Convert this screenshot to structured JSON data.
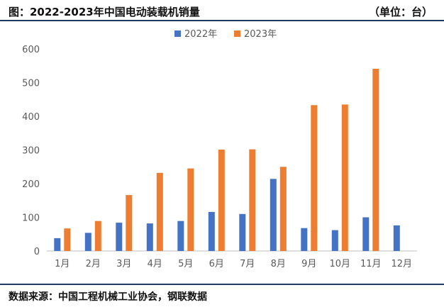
{
  "header": {
    "title": "图：2022-2023年中国电动装载机销量",
    "unit": "（单位：台）"
  },
  "footer": {
    "source": "数据来源：中国工程机械工业协会，钢联数据"
  },
  "colors": {
    "series_2022": "#4472c4",
    "series_2023": "#ed7d31",
    "axis": "#bfbfbf",
    "tick_text": "#595959",
    "rule": "#1f3b63"
  },
  "chart_data": {
    "type": "bar",
    "title": "",
    "xlabel": "",
    "ylabel": "",
    "ylim": [
      0,
      600
    ],
    "yticks": [
      0,
      100,
      200,
      300,
      400,
      500,
      600
    ],
    "grid": false,
    "legend_position": "top",
    "categories": [
      "1月",
      "2月",
      "3月",
      "4月",
      "5月",
      "6月",
      "7月",
      "8月",
      "9月",
      "10月",
      "11月",
      "12月"
    ],
    "series": [
      {
        "name": "2022年",
        "color": "#4472c4",
        "values": [
          38,
          54,
          84,
          82,
          89,
          116,
          110,
          214,
          68,
          62,
          100,
          76
        ]
      },
      {
        "name": "2023年",
        "color": "#ed7d31",
        "values": [
          67,
          89,
          166,
          232,
          245,
          301,
          302,
          250,
          433,
          435,
          541,
          null
        ]
      }
    ]
  }
}
